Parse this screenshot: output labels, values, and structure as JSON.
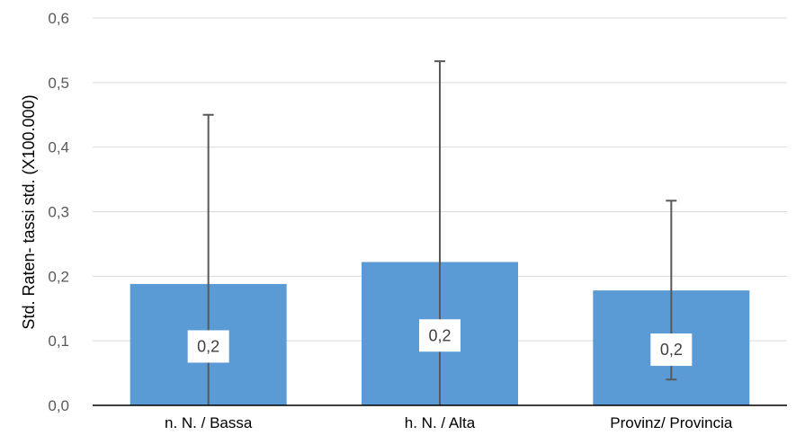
{
  "chart_data": {
    "type": "bar",
    "categories": [
      "n. N. / Bassa",
      "h. N. / Alta",
      "Provinz/ Provincia"
    ],
    "values": [
      0.188,
      0.222,
      0.178
    ],
    "data_labels": [
      "0,2",
      "0,2",
      "0,2"
    ],
    "error_upper": [
      0.45,
      0.533,
      0.317
    ],
    "error_lower": [
      0.0,
      0.0,
      0.04
    ],
    "ylabel": "Std. Raten- tassi std. (X100.000)",
    "xlabel": "",
    "ylim": [
      0,
      0.6
    ],
    "yticks": [
      0.0,
      0.1,
      0.2,
      0.3,
      0.4,
      0.5,
      0.6
    ],
    "ytick_labels": [
      "0,0",
      "0,1",
      "0,2",
      "0,3",
      "0,4",
      "0,5",
      "0,6"
    ],
    "grid": true,
    "legend": "none",
    "colors": {
      "bar": "#5B9BD5",
      "grid": "#D9D9D9",
      "axis": "#000000",
      "error_bar": "#595959",
      "label_bg": "#FFFFFF"
    }
  }
}
